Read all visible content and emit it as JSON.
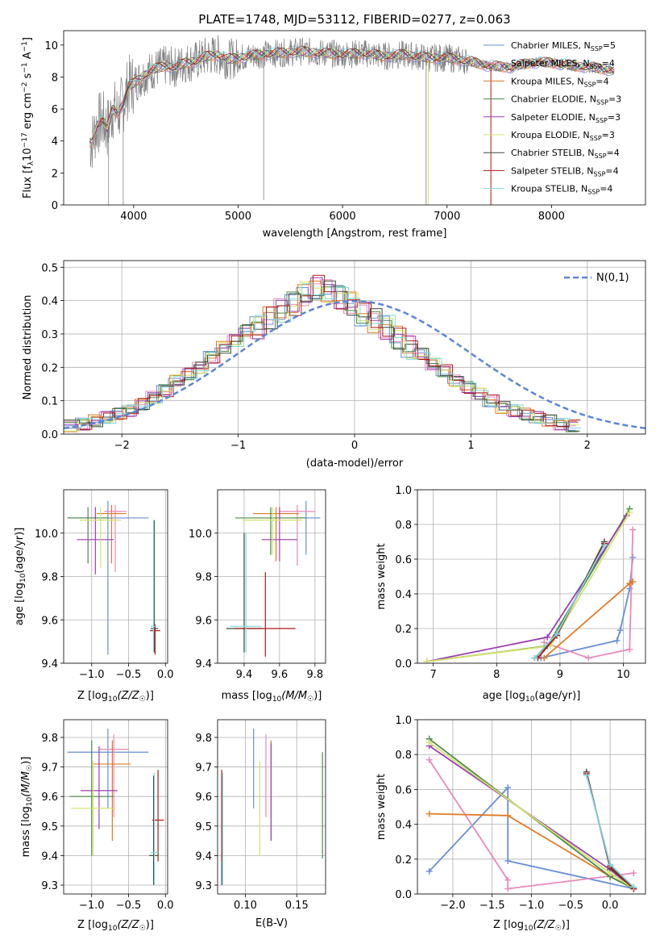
{
  "figure_title": "PLATE=1748, MJD=53112, FIBERID=0277, z=0.063",
  "colors": [
    "#6a8ed6",
    "#e889bb",
    "#e07b28",
    "#4a8a4a",
    "#9a3fb0",
    "#d4e26a",
    "#3a4a3a",
    "#b01818",
    "#7fd8e0"
  ],
  "spectrum_color": "#808080",
  "chart_data": [
    {
      "id": "spectrum",
      "type": "line",
      "title": "PLATE=1748, MJD=53112, FIBERID=0277, z=0.063",
      "xlabel": "wavelength [Angstrom, rest frame]",
      "ylabel": "Flux [f_λ 10^-17 erg cm^-2 s^-1 A^-1]",
      "xlim": [
        3330,
        8900
      ],
      "ylim": [
        0,
        10.9
      ],
      "xticks": [
        4000,
        5000,
        6000,
        7000,
        8000
      ],
      "yticks": [
        0,
        2,
        4,
        6,
        8,
        10
      ],
      "grid": false,
      "legend_position": "right",
      "data_profile": {
        "x": [
          3600,
          3650,
          3700,
          3750,
          3800,
          3850,
          3900,
          3950,
          4000,
          4100,
          4200,
          4300,
          4400,
          4500,
          4600,
          4700,
          4800,
          4900,
          5000,
          5200,
          5400,
          5600,
          5800,
          6000,
          6200,
          6400,
          6600,
          6800,
          7000,
          7200,
          7400,
          7600,
          7800,
          8000,
          8200,
          8400,
          8600
        ],
        "y": [
          3.9,
          5.0,
          5.3,
          4.8,
          6.0,
          5.7,
          6.4,
          7.4,
          7.6,
          8.1,
          8.5,
          8.7,
          8.6,
          8.9,
          9.0,
          9.3,
          9.4,
          9.1,
          9.2,
          9.4,
          9.5,
          9.6,
          9.5,
          9.4,
          9.5,
          9.3,
          9.4,
          9.2,
          9.2,
          9.0,
          8.7,
          8.6,
          8.9,
          8.9,
          8.7,
          8.6,
          8.4
        ]
      },
      "series": [
        {
          "name": "Chabrier MILES, N_SSP=5",
          "label": "Chabrier MILES, N",
          "sub": "SSP",
          "suffix": "=5"
        },
        {
          "name": "Salpeter MILES, N_SSP=4",
          "label": "Salpeter MILES, N",
          "sub": "SSP",
          "suffix": "=4"
        },
        {
          "name": "Kroupa MILES, N_SSP=4",
          "label": "Kroupa MILES, N",
          "sub": "SSP",
          "suffix": "=4"
        },
        {
          "name": "Chabrier ELODIE, N_SSP=3",
          "label": "Chabrier ELODIE, N",
          "sub": "SSP",
          "suffix": "=3"
        },
        {
          "name": "Salpeter ELODIE, N_SSP=3",
          "label": "Salpeter ELODIE, N",
          "sub": "SSP",
          "suffix": "=3"
        },
        {
          "name": "Kroupa ELODIE, N_SSP=3",
          "label": "Kroupa ELODIE, N",
          "sub": "SSP",
          "suffix": "=3"
        },
        {
          "name": "Chabrier STELIB, N_SSP=4",
          "label": "Chabrier STELIB, N",
          "sub": "SSP",
          "suffix": "=4"
        },
        {
          "name": "Salpeter STELIB, N_SSP=4",
          "label": "Salpeter STELIB, N",
          "sub": "SSP",
          "suffix": "=4"
        },
        {
          "name": "Kroupa STELIB, N_SSP=4",
          "label": "Kroupa STELIB, N",
          "sub": "SSP",
          "suffix": "=4"
        }
      ]
    },
    {
      "id": "residuals",
      "type": "step",
      "xlabel": "(data-model)/error",
      "ylabel": "Normed distribution",
      "xlim": [
        -2.5,
        2.5
      ],
      "ylim": [
        0,
        0.52
      ],
      "xticks": [
        -2,
        -1,
        0,
        1,
        2
      ],
      "yticks": [
        0.0,
        0.1,
        0.2,
        0.3,
        0.4,
        0.5
      ],
      "grid": true,
      "legend_entry": "N(0,1)",
      "legend_position": "top-right",
      "reference_curve": "standard normal density",
      "bin_width": 0.1,
      "hist_template": [
        0.025,
        0.03,
        0.04,
        0.05,
        0.06,
        0.07,
        0.09,
        0.11,
        0.13,
        0.16,
        0.18,
        0.2,
        0.23,
        0.26,
        0.28,
        0.31,
        0.32,
        0.35,
        0.37,
        0.39,
        0.42,
        0.44,
        0.43,
        0.41,
        0.39,
        0.36,
        0.34,
        0.32,
        0.29,
        0.26,
        0.24,
        0.21,
        0.19,
        0.16,
        0.14,
        0.12,
        0.1,
        0.08,
        0.07,
        0.06,
        0.05,
        0.04,
        0.03,
        0.025
      ]
    },
    {
      "id": "age_vs_Z",
      "type": "errorbar",
      "xlabel": "Z [log10(Z/Z☉)]",
      "ylabel": "age [log10(age/yr)]",
      "xlim": [
        -1.38,
        0.03
      ],
      "ylim": [
        9.4,
        10.2
      ],
      "xticks": [
        -1.0,
        -0.5,
        0.0
      ],
      "yticks": [
        9.4,
        9.6,
        9.8,
        10.0
      ],
      "grid": true,
      "points": [
        {
          "x": -0.78,
          "y": 10.07,
          "xerr": 0.55,
          "ylo": 9.44,
          "yhi": 10.15
        },
        {
          "x": -0.68,
          "y": 10.1,
          "xerr": 0.15,
          "ylo": 9.82,
          "yhi": 10.13
        },
        {
          "x": -0.73,
          "y": 10.09,
          "xerr": 0.2,
          "ylo": 9.86,
          "yhi": 10.13
        },
        {
          "x": -1.05,
          "y": 10.07,
          "xerr": 0.28,
          "ylo": 9.86,
          "yhi": 10.12
        },
        {
          "x": -0.95,
          "y": 9.97,
          "xerr": 0.25,
          "ylo": 9.81,
          "yhi": 10.12
        },
        {
          "x": -0.88,
          "y": 10.06,
          "xerr": 0.28,
          "ylo": 9.84,
          "yhi": 10.12
        },
        {
          "x": -0.15,
          "y": 9.56,
          "xerr": 0.05,
          "ylo": 9.45,
          "yhi": 10.06
        },
        {
          "x": -0.14,
          "y": 9.55,
          "xerr": 0.07,
          "ylo": 9.44,
          "yhi": 9.58
        },
        {
          "x": -0.16,
          "y": 9.57,
          "xerr": 0.04,
          "ylo": 9.45,
          "yhi": 10.06
        }
      ]
    },
    {
      "id": "age_vs_mass",
      "type": "errorbar",
      "xlabel": "mass [log10(M/M☉)]",
      "ylabel": "",
      "xlim": [
        9.25,
        9.86
      ],
      "ylim": [
        9.4,
        10.2
      ],
      "xticks": [
        9.4,
        9.6,
        9.8
      ],
      "yticks": [
        9.4,
        9.6,
        9.8,
        10.0
      ],
      "grid": true,
      "points": [
        {
          "x": 9.75,
          "y": 10.07,
          "xerr": 0.08,
          "ylo": 9.9,
          "yhi": 10.15
        },
        {
          "x": 9.7,
          "y": 10.1,
          "xerr": 0.1,
          "ylo": 9.85,
          "yhi": 10.13
        },
        {
          "x": 9.58,
          "y": 10.09,
          "xerr": 0.13,
          "ylo": 9.87,
          "yhi": 10.12
        },
        {
          "x": 9.55,
          "y": 10.07,
          "xerr": 0.2,
          "ylo": 9.9,
          "yhi": 10.12
        },
        {
          "x": 9.6,
          "y": 9.97,
          "xerr": 0.1,
          "ylo": 9.87,
          "yhi": 10.12
        },
        {
          "x": 9.56,
          "y": 10.06,
          "xerr": 0.17,
          "ylo": 9.9,
          "yhi": 10.12
        },
        {
          "x": 9.4,
          "y": 9.56,
          "xerr": 0.1,
          "ylo": 9.45,
          "yhi": 10.0
        },
        {
          "x": 9.52,
          "y": 9.56,
          "xerr": 0.17,
          "ylo": 9.43,
          "yhi": 9.82
        },
        {
          "x": 9.41,
          "y": 9.57,
          "xerr": 0.09,
          "ylo": 9.45,
          "yhi": 10.0
        }
      ]
    },
    {
      "id": "weight_vs_age",
      "type": "line",
      "xlabel": "age [log10(age/yr)]",
      "ylabel": "mass weight",
      "xlim": [
        6.75,
        10.35
      ],
      "ylim": [
        0,
        1.0
      ],
      "xticks": [
        7,
        8,
        9,
        10
      ],
      "yticks": [
        0.0,
        0.2,
        0.4,
        0.6,
        0.8,
        1.0
      ],
      "grid": true,
      "series": [
        {
          "x": [
            8.7,
            9.9,
            9.95,
            10.1,
            10.15
          ],
          "y": [
            0.03,
            0.13,
            0.19,
            0.43,
            0.61
          ]
        },
        {
          "x": [
            8.75,
            9.45,
            10.1,
            10.15
          ],
          "y": [
            0.12,
            0.03,
            0.08,
            0.77
          ]
        },
        {
          "x": [
            8.75,
            10.1,
            10.15
          ],
          "y": [
            0.03,
            0.46,
            0.47
          ]
        },
        {
          "x": [
            6.9,
            8.8,
            10.1
          ],
          "y": [
            0.01,
            0.1,
            0.89
          ]
        },
        {
          "x": [
            6.9,
            8.8,
            10.05
          ],
          "y": [
            0.01,
            0.15,
            0.85
          ]
        },
        {
          "x": [
            6.9,
            8.85,
            10.1
          ],
          "y": [
            0.01,
            0.1,
            0.87
          ]
        },
        {
          "x": [
            8.6,
            8.95,
            9.7
          ],
          "y": [
            0.03,
            0.16,
            0.7
          ]
        },
        {
          "x": [
            8.65,
            8.95,
            9.7
          ],
          "y": [
            0.03,
            0.16,
            0.69
          ]
        },
        {
          "x": [
            8.6,
            8.95,
            9.7
          ],
          "y": [
            0.03,
            0.17,
            0.68
          ]
        }
      ]
    },
    {
      "id": "mass_vs_Z",
      "type": "errorbar",
      "xlabel": "Z [log10(Z/Z☉)]",
      "ylabel": "mass [log10(M/M☉)]",
      "xlim": [
        -1.38,
        0.03
      ],
      "ylim": [
        9.27,
        9.86
      ],
      "xticks": [
        -1.0,
        -0.5,
        0.0
      ],
      "yticks": [
        9.3,
        9.4,
        9.5,
        9.6,
        9.7,
        9.8
      ],
      "grid": true,
      "points": [
        {
          "x": -0.78,
          "y": 9.75,
          "xerr": 0.55,
          "ylo": 9.56,
          "yhi": 9.83
        },
        {
          "x": -0.7,
          "y": 9.76,
          "xerr": 0.2,
          "ylo": 9.53,
          "yhi": 9.81
        },
        {
          "x": -0.72,
          "y": 9.71,
          "xerr": 0.25,
          "ylo": 9.45,
          "yhi": 9.79
        },
        {
          "x": -1.0,
          "y": 9.6,
          "xerr": 0.3,
          "ylo": 9.4,
          "yhi": 9.79
        },
        {
          "x": -0.9,
          "y": 9.62,
          "xerr": 0.25,
          "ylo": 9.49,
          "yhi": 9.77
        },
        {
          "x": -0.98,
          "y": 9.56,
          "xerr": 0.3,
          "ylo": 9.4,
          "yhi": 9.72
        },
        {
          "x": -0.16,
          "y": 9.4,
          "xerr": 0.06,
          "ylo": 9.3,
          "yhi": 9.67
        },
        {
          "x": -0.1,
          "y": 9.52,
          "xerr": 0.08,
          "ylo": 9.38,
          "yhi": 9.69
        },
        {
          "x": -0.15,
          "y": 9.41,
          "xerr": 0.05,
          "ylo": 9.3,
          "yhi": 9.68
        }
      ]
    },
    {
      "id": "mass_vs_EBV",
      "type": "errorbar",
      "xlabel": "E(B-V)",
      "ylabel": "",
      "xlim": [
        0.073,
        0.178
      ],
      "ylim": [
        9.27,
        9.86
      ],
      "xticks": [
        0.1,
        0.15
      ],
      "yticks": [
        9.3,
        9.4,
        9.5,
        9.6,
        9.7,
        9.8
      ],
      "grid": true,
      "points": [
        {
          "x": 0.108,
          "y": 9.75,
          "ylo": 9.56,
          "yhi": 9.83
        },
        {
          "x": 0.12,
          "y": 9.76,
          "ylo": 9.53,
          "yhi": 9.81
        },
        {
          "x": 0.125,
          "y": 9.71,
          "ylo": 9.45,
          "yhi": 9.79
        },
        {
          "x": 0.175,
          "y": 9.6,
          "ylo": 9.39,
          "yhi": 9.75
        },
        {
          "x": 0.125,
          "y": 9.62,
          "ylo": 9.45,
          "yhi": 9.78
        },
        {
          "x": 0.114,
          "y": 9.56,
          "ylo": 9.4,
          "yhi": 9.72
        },
        {
          "x": 0.077,
          "y": 9.4,
          "ylo": 9.3,
          "yhi": 9.67
        },
        {
          "x": 0.077,
          "y": 9.52,
          "ylo": 9.38,
          "yhi": 9.69
        },
        {
          "x": 0.078,
          "y": 9.41,
          "ylo": 9.3,
          "yhi": 9.68
        }
      ]
    },
    {
      "id": "weight_vs_Z",
      "type": "line",
      "xlabel": "Z [log10(Z/Z☉)]",
      "ylabel": "mass weight",
      "xlim": [
        -2.45,
        0.45
      ],
      "ylim": [
        0,
        1.0
      ],
      "xticks": [
        -2.0,
        -1.5,
        -1.0,
        -0.5,
        0.0
      ],
      "yticks": [
        0.0,
        0.2,
        0.4,
        0.6,
        0.8,
        1.0
      ],
      "grid": true,
      "series": [
        {
          "x": [
            -2.3,
            -1.3,
            -1.3,
            0.3
          ],
          "y": [
            0.13,
            0.61,
            0.19,
            0.03
          ]
        },
        {
          "x": [
            -2.3,
            -1.3,
            -1.3,
            0.3
          ],
          "y": [
            0.77,
            0.08,
            0.03,
            0.12
          ]
        },
        {
          "x": [
            -2.3,
            -1.3,
            0.0,
            0.3
          ],
          "y": [
            0.46,
            0.45,
            0.1,
            0.03
          ]
        },
        {
          "x": [
            -2.3,
            0.0,
            0.3
          ],
          "y": [
            0.89,
            0.1,
            0.03
          ]
        },
        {
          "x": [
            -2.3,
            0.0,
            0.3
          ],
          "y": [
            0.85,
            0.14,
            0.03
          ]
        },
        {
          "x": [
            -2.3,
            0.0,
            0.3
          ],
          "y": [
            0.87,
            0.12,
            0.03
          ]
        },
        {
          "x": [
            -0.3,
            0.0,
            0.3
          ],
          "y": [
            0.7,
            0.15,
            0.03
          ]
        },
        {
          "x": [
            -0.3,
            0.0,
            0.3
          ],
          "y": [
            0.69,
            0.16,
            0.03
          ]
        },
        {
          "x": [
            -0.3,
            0.0,
            0.3
          ],
          "y": [
            0.68,
            0.17,
            0.04
          ]
        }
      ]
    }
  ]
}
